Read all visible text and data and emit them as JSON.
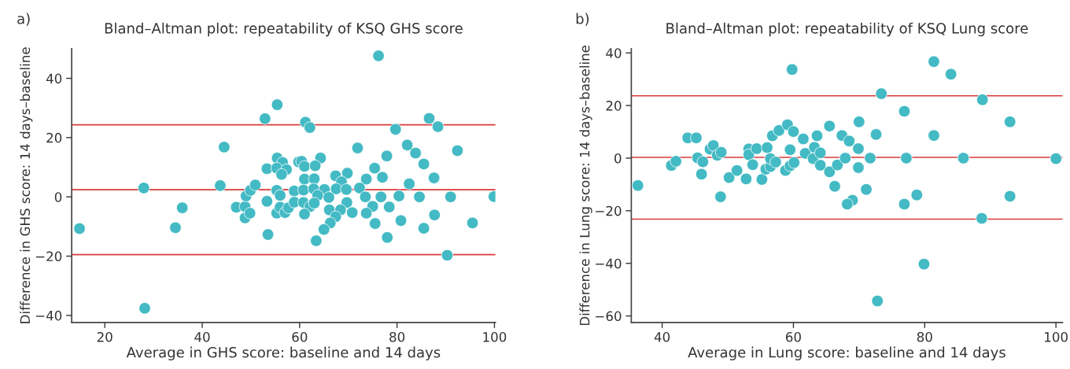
{
  "chart_data": [
    {
      "type": "scatter",
      "title": "Bland–Altman plot: repeatability of KSQ GHS score",
      "xlabel": "Average in GHS score: baseline and 14 days",
      "ylabel": "Difference in GHS score: 14 days–baseline",
      "annotations": [
        "a)"
      ],
      "color": "#43bac4",
      "marker": "circle",
      "grid": false,
      "xlim": [
        13.2,
        100.2
      ],
      "ylim": [
        -42.4,
        50
      ],
      "xticks": [
        20,
        40,
        60,
        80,
        100
      ],
      "yticks": [
        -40,
        -20,
        0,
        20,
        40
      ],
      "ref_lines": [
        {
          "axis": "y",
          "value": 24.3,
          "color": "#d93a3a"
        },
        {
          "axis": "y",
          "value": 2.4,
          "color": "#d93a3a"
        },
        {
          "axis": "y",
          "value": -19.5,
          "color": "#d93a3a"
        }
      ],
      "x": [
        14.8,
        28.0,
        28.2,
        34.5,
        35.9,
        43.7,
        44.5,
        47.0,
        48.8,
        48.8,
        49.8,
        49.0,
        49.9,
        50.9,
        52.9,
        55.4,
        53.3,
        53.3,
        53.5,
        55.3,
        56.0,
        55.4,
        56.5,
        55.3,
        57.3,
        56.3,
        55.3,
        56.0,
        57.0,
        57.7,
        58.9,
        58.9,
        59.8,
        76.2,
        61.2,
        62.1,
        79.7,
        86.6,
        88.4,
        71.9,
        82.1,
        83.8,
        92.4,
        77.9,
        85.5,
        64.3,
        60.4,
        61.0,
        63.2,
        75.4,
        69.8,
        67.4,
        68.6,
        73.7,
        77.0,
        87.6,
        61.0,
        63.0,
        82.5,
        60.8,
        62.9,
        65.1,
        67.5,
        69.6,
        72.3,
        63.7,
        66.0,
        73.5,
        76.7,
        80.4,
        84.6,
        91.0,
        99.9,
        60.8,
        62.1,
        63.0,
        69.7,
        66.1,
        68.4,
        75.0,
        78.4,
        61.0,
        67.4,
        70.8,
        73.7,
        87.7,
        66.3,
        65.0,
        75.5,
        80.8,
        85.5,
        95.5,
        63.4,
        78.0,
        90.3
      ],
      "values": [
        -10.7,
        3.0,
        -37.6,
        -10.4,
        -3.7,
        3.8,
        16.8,
        -3.5,
        -3.3,
        -7.1,
        -5.5,
        0.3,
        2.2,
        4.0,
        26.4,
        31.1,
        9.5,
        -1.5,
        -12.7,
        2.2,
        0.5,
        13.1,
        11.6,
        9.7,
        9.2,
        7.6,
        -5.5,
        -3.5,
        -5.3,
        -3.7,
        2.0,
        -1.8,
        11.8,
        47.6,
        25.2,
        23.4,
        22.8,
        26.5,
        23.7,
        16.5,
        17.5,
        14.8,
        15.6,
        13.8,
        11.1,
        13.1,
        12.0,
        10.3,
        10.5,
        9.7,
        8.0,
        7.1,
        5.1,
        6.0,
        6.6,
        6.4,
        6.0,
        6.1,
        4.4,
        2.3,
        2.7,
        2.5,
        2.7,
        2.5,
        3.0,
        0.5,
        -0.2,
        0.0,
        0.0,
        0.3,
        0.0,
        0.0,
        0.1,
        -1.9,
        -3.3,
        -2.1,
        -1.9,
        -4.4,
        -4.4,
        -3.2,
        -3.4,
        -5.8,
        -6.7,
        -5.3,
        -5.5,
        -6.1,
        -8.8,
        -11.0,
        -9.0,
        -8.0,
        -10.6,
        -8.8,
        -14.8,
        -13.7,
        -19.7
      ]
    },
    {
      "type": "scatter",
      "title": "Bland–Altman plot: repeatability of KSQ Lung score",
      "xlabel": "Average in Lung score: baseline and 14 days",
      "ylabel": "Difference in Lung score: 14 days–baseline",
      "annotations": [
        "b)"
      ],
      "color": "#43bac4",
      "marker": "circle",
      "grid": false,
      "xlim": [
        35.3,
        101
      ],
      "ylim": [
        -62.5,
        41.6
      ],
      "xticks": [
        40,
        60,
        80,
        100
      ],
      "yticks": [
        -60,
        -40,
        -20,
        0,
        20,
        40
      ],
      "ref_lines": [
        {
          "axis": "y",
          "value": 23.7,
          "color": "#d93a3a"
        },
        {
          "axis": "y",
          "value": 0.3,
          "color": "#d93a3a"
        },
        {
          "axis": "y",
          "value": -23.2,
          "color": "#d93a3a"
        }
      ],
      "x": [
        36.3,
        41.4,
        42.1,
        43.9,
        45.2,
        45.4,
        46.2,
        46.0,
        47.3,
        47.8,
        48.4,
        49.0,
        48.9,
        50.2,
        51.4,
        52.8,
        53.2,
        53.2,
        54.4,
        53.8,
        55.2,
        56.0,
        55.8,
        56.5,
        56.5,
        57.3,
        56.8,
        57.8,
        59.1,
        59.8,
        60.0,
        59.5,
        58.8,
        59.5,
        60.1,
        61.5,
        61.8,
        63.0,
        63.2,
        63.6,
        64.1,
        64.1,
        65.5,
        65.5,
        66.3,
        66.7,
        67.4,
        68.5,
        70.0,
        69.9,
        72.6,
        73.4,
        67.9,
        71.7,
        77.2,
        85.9,
        100.0,
        69.9,
        71.1,
        69.0,
        68.2,
        76.9,
        78.8,
        76.9,
        81.4,
        84.0,
        81.4,
        88.8,
        93.0,
        88.7,
        93.0,
        79.9,
        72.8
      ],
      "values": [
        -10.4,
        -2.8,
        -1.2,
        7.7,
        7.7,
        0.1,
        -1.4,
        -6.1,
        3.4,
        4.8,
        1.1,
        2.2,
        -14.7,
        -7.4,
        -4.7,
        -7.9,
        3.5,
        1.3,
        3.6,
        -2.5,
        -8.1,
        4.0,
        -4.2,
        -3.2,
        -0.2,
        -1.5,
        8.5,
        10.5,
        12.7,
        33.7,
        10.1,
        3.2,
        -4.7,
        -2.9,
        -1.7,
        7.3,
        1.8,
        -0.2,
        4.1,
        8.5,
        2.0,
        -2.7,
        12.2,
        -5.2,
        -10.7,
        -2.6,
        8.6,
        6.5,
        13.8,
        3.6,
        9.0,
        24.5,
        0.0,
        0.0,
        0.0,
        0.0,
        -0.2,
        -3.6,
        -11.9,
        -16.0,
        -17.5,
        -17.5,
        -14.0,
        17.8,
        36.7,
        31.9,
        8.6,
        22.2,
        13.8,
        -22.9,
        -14.5,
        -40.3,
        -54.3
      ]
    }
  ]
}
